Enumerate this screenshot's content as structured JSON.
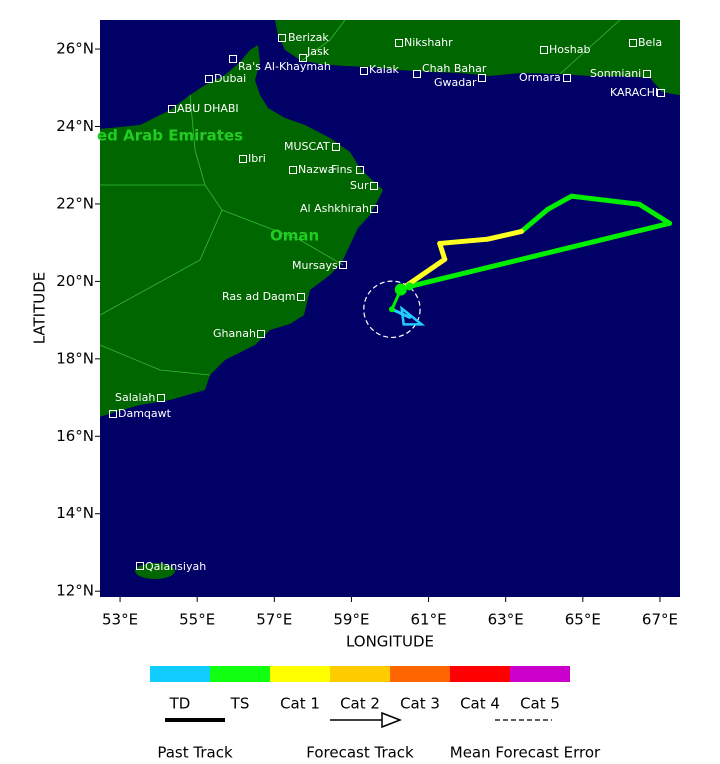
{
  "chart_data": {
    "type": "map",
    "xlabel": "LONGITUDE",
    "ylabel": "LATITUDE",
    "xlim": [
      52.48,
      67.52
    ],
    "ylim": [
      11.85,
      26.75
    ],
    "xticks": [
      {
        "value": 53,
        "label": "53°E"
      },
      {
        "value": 55,
        "label": "55°E"
      },
      {
        "value": 57,
        "label": "57°E"
      },
      {
        "value": 59,
        "label": "59°E"
      },
      {
        "value": 61,
        "label": "61°E"
      },
      {
        "value": 63,
        "label": "63°E"
      },
      {
        "value": 65,
        "label": "65°E"
      },
      {
        "value": 67,
        "label": "67°E"
      }
    ],
    "yticks": [
      {
        "value": 12,
        "label": "12°N"
      },
      {
        "value": 14,
        "label": "14°N"
      },
      {
        "value": 16,
        "label": "16°N"
      },
      {
        "value": 18,
        "label": "18°N"
      },
      {
        "value": 20,
        "label": "20°N"
      },
      {
        "value": 22,
        "label": "22°N"
      },
      {
        "value": 24,
        "label": "24°N"
      },
      {
        "value": 26,
        "label": "26°N"
      }
    ],
    "past_track": {
      "lon": [
        60.51,
        67.25,
        66.47,
        64.71,
        64.09,
        63.41,
        62.53,
        61.29,
        61.42,
        60.28
      ],
      "lat": [
        19.87,
        21.5,
        21.99,
        22.2,
        21.86,
        21.29,
        21.09,
        20.98,
        20.57,
        19.79
      ],
      "colors": [
        "#00ee00",
        "#00ee00",
        "#00ee00",
        "#00ee00",
        "#00ee00",
        "#ffff22",
        "#ffff22",
        "#ffff22",
        "#ffff22"
      ]
    },
    "forecast_track": {
      "lon": [
        60.28,
        60.05,
        60.51
      ],
      "lat": [
        19.79,
        19.28,
        19.07
      ],
      "colors": [
        "#00ee00",
        "#22ccff"
      ]
    },
    "error_radius": 0.73,
    "legend": {
      "categories": [
        "TD",
        "TS",
        "Cat 1",
        "Cat 2",
        "Cat 3",
        "Cat 4",
        "Cat 5"
      ],
      "colors": [
        "#11ccff",
        "#11ff11",
        "#ffff00",
        "#ffcc00",
        "#ff6600",
        "#ff0000",
        "#cc00cc"
      ],
      "lines": [
        "Past Track",
        "Forecast Track",
        "Mean Forecast Error"
      ]
    },
    "regions": [
      "ed Arab Emirates",
      "Oman"
    ],
    "places": [
      "Berizak",
      "Jask",
      "Ra's Al-Khaymah",
      "Dubai",
      "ABU DHABI",
      "Nikshahr",
      "Kalak",
      "Chah Bahar",
      "Gwadar",
      "Ormara",
      "Hoshab",
      "Bela",
      "Sonmiani",
      "KARACHI",
      "MUSCAT",
      "Ibri",
      "Nazwa",
      "Fins",
      "Sur",
      "Al Ashkhirah",
      "Mursays",
      "Ras ad Daqm",
      "Ghanah",
      "Salalah",
      "Damqawt",
      "Qalansiyah"
    ]
  }
}
